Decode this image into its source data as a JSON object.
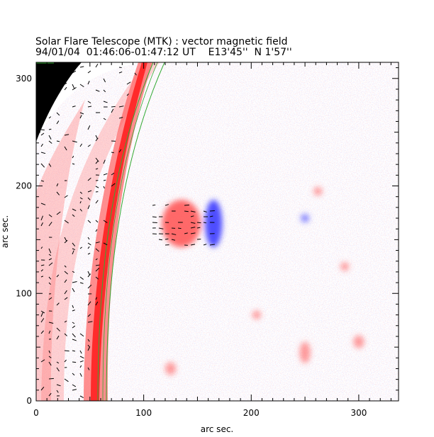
{
  "header": {
    "title": "Solar Flare Telescope (MTK) : vector magnetic field",
    "subtitle": "94/01/04  01:46:06-01:47:12 UT    E13'45''  N 1'57''"
  },
  "colors": {
    "positive_polarity": "#ff5a5a",
    "negative_polarity": "#3c3cff",
    "outside_disk": "#000000",
    "limb_curve": "#33aa33",
    "vectors": "#000000"
  },
  "chart_data": {
    "type": "heatmap",
    "title": "Solar Flare Telescope (MTK) : vector magnetic field",
    "xlabel": "arc sec.",
    "ylabel": "arc sec.",
    "xlim": [
      0,
      337
    ],
    "ylim": [
      0,
      315
    ],
    "x_ticks": [
      "0",
      "100",
      "200",
      "300"
    ],
    "y_ticks": [
      "0",
      "100",
      "200",
      "300"
    ],
    "x_tick_values": [
      0,
      100,
      200,
      300
    ],
    "y_tick_values": [
      0,
      100,
      200,
      300
    ],
    "grid": false,
    "features": [
      {
        "name": "positive-region",
        "polarity": "positive",
        "x": 135,
        "y": 165,
        "rx": 18,
        "ry": 22
      },
      {
        "name": "negative-region",
        "polarity": "negative",
        "x": 165,
        "y": 165,
        "rx": 8,
        "ry": 22
      },
      {
        "name": "small-negative-spot",
        "polarity": "negative",
        "x": 250,
        "y": 170,
        "rx": 4,
        "ry": 4
      },
      {
        "name": "small-positive-spot-1",
        "polarity": "positive",
        "x": 287,
        "y": 125,
        "rx": 4,
        "ry": 4
      },
      {
        "name": "small-positive-spot-2",
        "polarity": "positive",
        "x": 262,
        "y": 195,
        "rx": 4,
        "ry": 4
      },
      {
        "name": "small-positive-spot-3",
        "polarity": "positive",
        "x": 250,
        "y": 45,
        "rx": 5,
        "ry": 10
      },
      {
        "name": "small-positive-spot-4",
        "polarity": "positive",
        "x": 300,
        "y": 55,
        "rx": 5,
        "ry": 6
      },
      {
        "name": "small-positive-spot-5",
        "polarity": "positive",
        "x": 125,
        "y": 30,
        "rx": 5,
        "ry": 6
      },
      {
        "name": "small-positive-spot-6",
        "polarity": "positive",
        "x": 205,
        "y": 80,
        "rx": 4,
        "ry": 4
      }
    ]
  }
}
